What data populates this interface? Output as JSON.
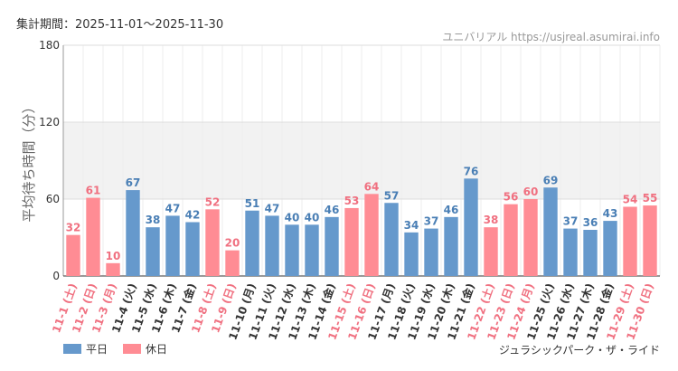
{
  "header": {
    "period": "集計期間：2025-11-01〜2025-11-30",
    "source": "ユニバリアル https://usjreal.asumirai.info"
  },
  "footer": {
    "attraction": "ジュラシックパーク・ザ・ライド"
  },
  "colors": {
    "weekday": "#6699cc",
    "holiday": "#ff8c94",
    "weekday_text": "#4a7fb5",
    "holiday_text": "#f07080",
    "band": "#f2f2f2",
    "grid": "#dddddd"
  },
  "chart_data": {
    "type": "bar",
    "title": "",
    "ylabel": "平均待ち時間（分）",
    "xlabel": "",
    "ylim": [
      0,
      180
    ],
    "yticks": [
      0,
      60,
      120,
      180
    ],
    "categories": [
      "11-1 (土)",
      "11-2 (日)",
      "11-3 (月)",
      "11-4 (火)",
      "11-5 (水)",
      "11-6 (木)",
      "11-7 (金)",
      "11-8 (土)",
      "11-9 (日)",
      "11-10 (月)",
      "11-11 (火)",
      "11-12 (水)",
      "11-13 (木)",
      "11-14 (金)",
      "11-15 (土)",
      "11-16 (日)",
      "11-17 (月)",
      "11-18 (火)",
      "11-19 (水)",
      "11-20 (木)",
      "11-21 (金)",
      "11-22 (土)",
      "11-23 (日)",
      "11-24 (月)",
      "11-25 (火)",
      "11-26 (水)",
      "11-27 (木)",
      "11-28 (金)",
      "11-29 (土)",
      "11-30 (日)"
    ],
    "values": [
      32,
      61,
      10,
      67,
      38,
      47,
      42,
      52,
      20,
      51,
      47,
      40,
      40,
      46,
      53,
      64,
      57,
      34,
      37,
      46,
      76,
      38,
      56,
      60,
      69,
      37,
      36,
      43,
      54,
      55
    ],
    "day_type": [
      "holiday",
      "holiday",
      "holiday",
      "weekday",
      "weekday",
      "weekday",
      "weekday",
      "holiday",
      "holiday",
      "weekday",
      "weekday",
      "weekday",
      "weekday",
      "weekday",
      "holiday",
      "holiday",
      "weekday",
      "weekday",
      "weekday",
      "weekday",
      "weekday",
      "holiday",
      "holiday",
      "holiday",
      "weekday",
      "weekday",
      "weekday",
      "weekday",
      "holiday",
      "holiday"
    ],
    "band": [
      60,
      120
    ],
    "legend": [
      {
        "name": "平日",
        "type": "weekday"
      },
      {
        "name": "休日",
        "type": "holiday"
      }
    ],
    "legend_position": "bottom-left",
    "grid": true
  }
}
